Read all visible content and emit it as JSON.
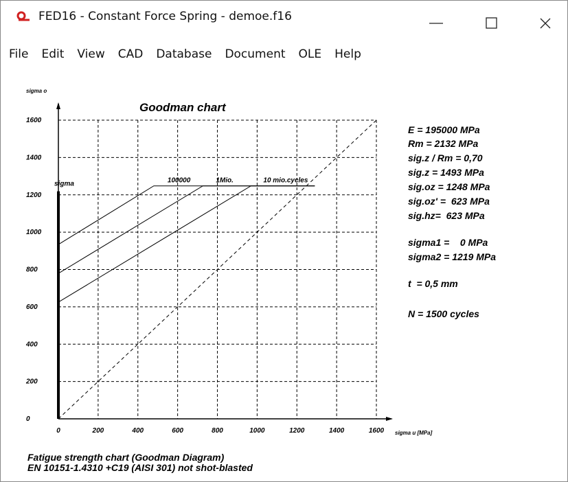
{
  "window": {
    "title": "FED16 - Constant Force Spring  -  demoe.f16"
  },
  "menu": [
    "File",
    "Edit",
    "View",
    "CAD",
    "Database",
    "Document",
    "OLE",
    "Help"
  ],
  "chart_data": {
    "type": "line",
    "title": "Goodman chart",
    "y_label": "sigma o",
    "x_label": "sigma u [MPa]",
    "xlim": [
      0,
      1600
    ],
    "ylim": [
      0,
      1600
    ],
    "xticks": [
      0,
      200,
      400,
      600,
      800,
      1000,
      1200,
      1400,
      1600
    ],
    "yticks": [
      0,
      200,
      400,
      600,
      800,
      1000,
      1200,
      1400,
      1600
    ],
    "grid": true,
    "series": [
      {
        "name": "100000",
        "color": "#000000",
        "x": [
          0,
          480,
          1290
        ],
        "values": [
          934,
          1248,
          1248
        ]
      },
      {
        "name": "1Mio.",
        "color": "#000000",
        "x": [
          0,
          727,
          1290
        ],
        "values": [
          779,
          1248,
          1248
        ]
      },
      {
        "name": "10 mio.cycles",
        "color": "#000000",
        "x": [
          0,
          969,
          1290
        ],
        "values": [
          625,
          1248,
          1248
        ]
      }
    ],
    "reference": {
      "x": [
        0,
        1600
      ],
      "values": [
        0,
        1600
      ]
    },
    "sigma": {
      "label": "sigma",
      "x": 0,
      "values": [
        0,
        1219
      ]
    },
    "parameters": [
      "E = 195000 MPa",
      "Rm = 2132 MPa",
      "sig.z / Rm = 0,70",
      "sig.z = 1493 MPa",
      "sig.oz = 1248 MPa",
      "sig.oz' =  623 MPa",
      "sig.hz=  623 MPa",
      "sigma1 =    0 MPa",
      "sigma2 = 1219 MPa",
      "t  = 0,5 mm",
      "N = 1500 cycles"
    ],
    "caption": [
      "Fatigue strength chart (Goodman Diagram)",
      "EN 10151-1.4310 +C19 (AISI 301) not shot-blasted"
    ]
  }
}
